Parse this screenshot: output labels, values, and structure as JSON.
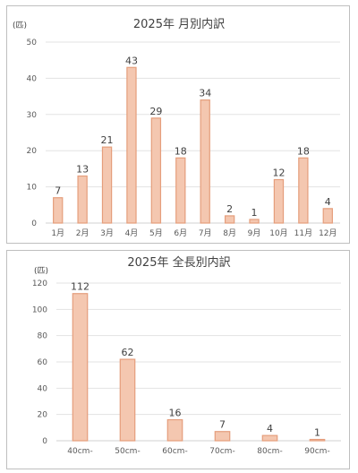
{
  "chart_data": [
    {
      "type": "bar",
      "title": "2025年 月別内訳",
      "unit_label": "(匹)",
      "categories": [
        "1月",
        "2月",
        "3月",
        "4月",
        "5月",
        "6月",
        "7月",
        "8月",
        "9月",
        "10月",
        "11月",
        "12月"
      ],
      "values": [
        7,
        13,
        21,
        43,
        29,
        18,
        34,
        2,
        1,
        12,
        18,
        4
      ],
      "ylim": [
        0,
        50
      ],
      "yticks": [
        0,
        10,
        20,
        30,
        40,
        50
      ],
      "grid": true,
      "bar_fill": "#f4c7b0",
      "bar_stroke": "#e59e7c"
    },
    {
      "type": "bar",
      "title": "2025年 全長別内訳",
      "unit_label": "(匹)",
      "categories": [
        "40cm-",
        "50cm-",
        "60cm-",
        "70cm-",
        "80cm-",
        "90cm-"
      ],
      "values": [
        112,
        62,
        16,
        7,
        4,
        1
      ],
      "ylim": [
        0,
        120
      ],
      "yticks": [
        0,
        20,
        40,
        60,
        80,
        100,
        120
      ],
      "grid": true,
      "bar_fill": "#f4c7b0",
      "bar_stroke": "#e59e7c"
    }
  ]
}
